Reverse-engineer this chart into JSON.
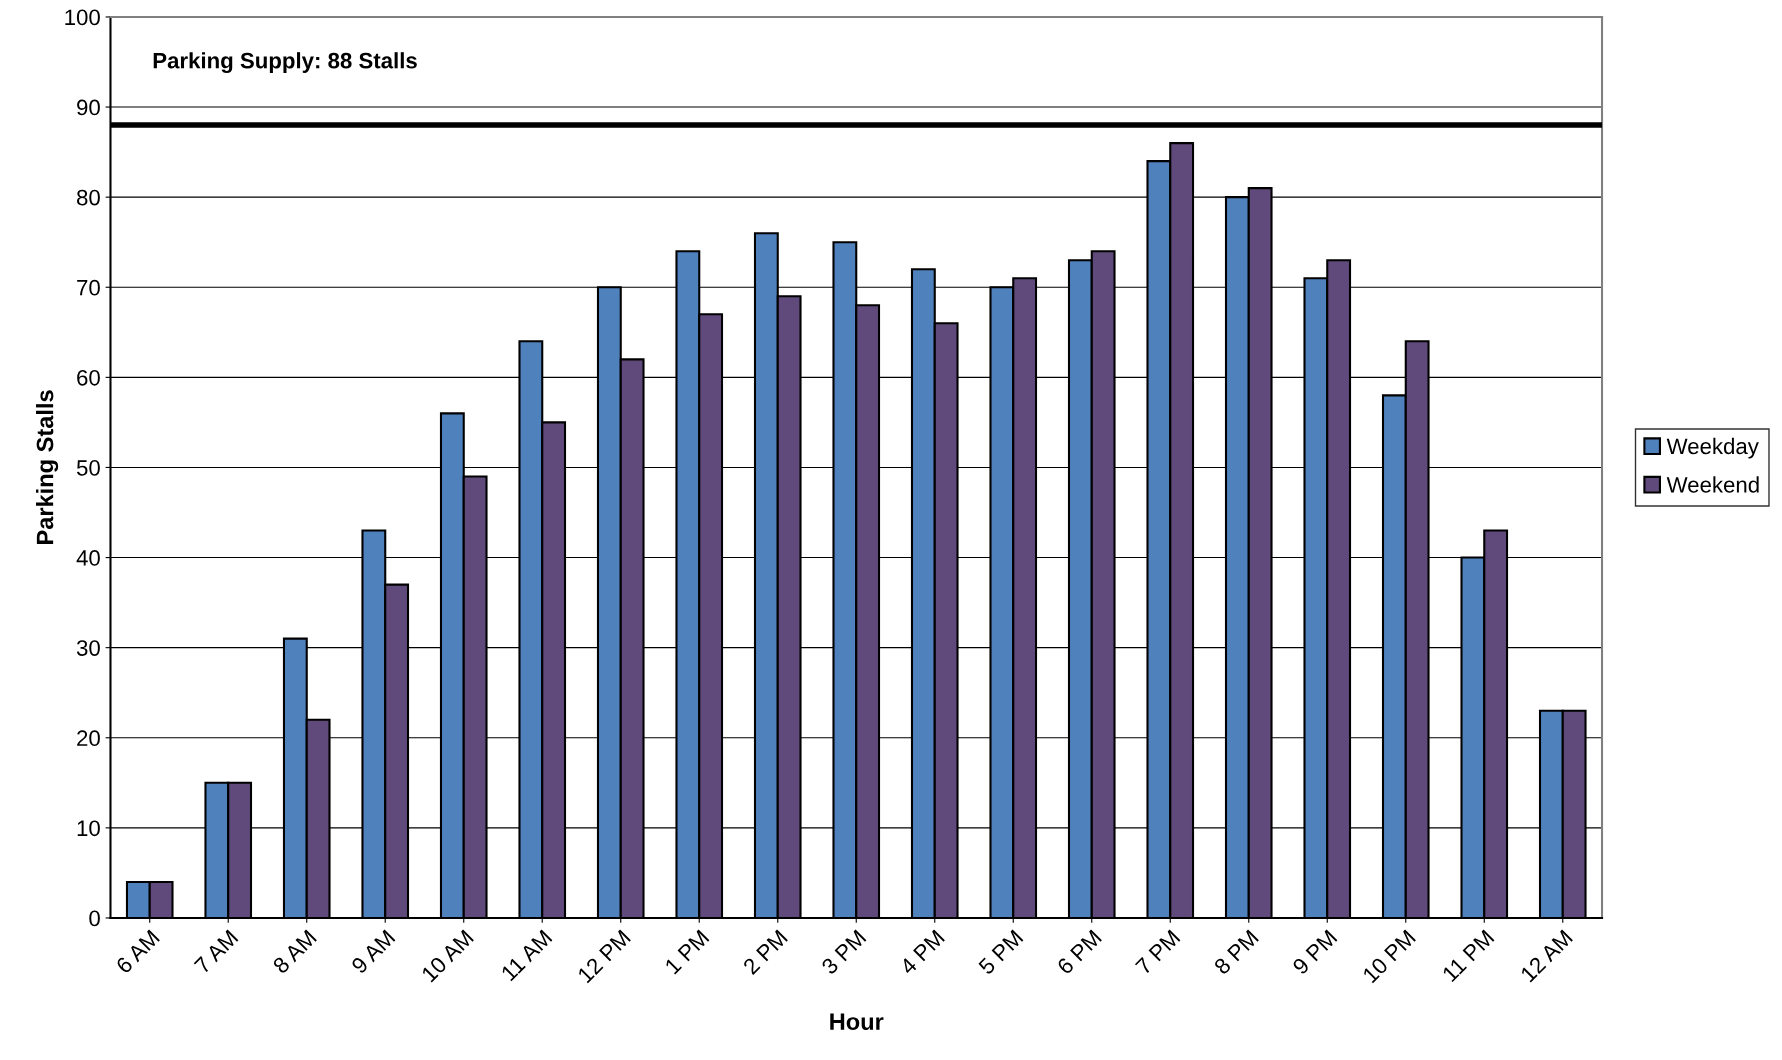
{
  "chart_data": {
    "type": "bar",
    "xlabel": "Hour",
    "ylabel": "Parking Stalls",
    "categories": [
      "6 AM",
      "7 AM",
      "8 AM",
      "9 AM",
      "10 AM",
      "11 AM",
      "12 PM",
      "1 PM",
      "2 PM",
      "3 PM",
      "4 PM",
      "5 PM",
      "6 PM",
      "7 PM",
      "8 PM",
      "9 PM",
      "10 PM",
      "11 PM",
      "12 AM"
    ],
    "series": [
      {
        "name": "Weekday",
        "color": "#4f81bd",
        "values": [
          4,
          15,
          31,
          43,
          56,
          64,
          70,
          74,
          76,
          75,
          72,
          70,
          73,
          84,
          80,
          71,
          58,
          40,
          23
        ]
      },
      {
        "name": "Weekend",
        "color": "#604a7b",
        "values": [
          4,
          15,
          22,
          37,
          49,
          55,
          62,
          67,
          69,
          68,
          66,
          71,
          74,
          86,
          81,
          73,
          64,
          43,
          23
        ]
      }
    ],
    "ylim": [
      0,
      100
    ],
    "yticks": [
      0,
      10,
      20,
      30,
      40,
      50,
      60,
      70,
      80,
      90,
      100
    ],
    "ref_lines": [
      {
        "axis": "y",
        "value": 88,
        "label": "Parking Supply: 88 Stalls",
        "color": "#000000"
      }
    ],
    "grid": "y",
    "legend": "right"
  }
}
